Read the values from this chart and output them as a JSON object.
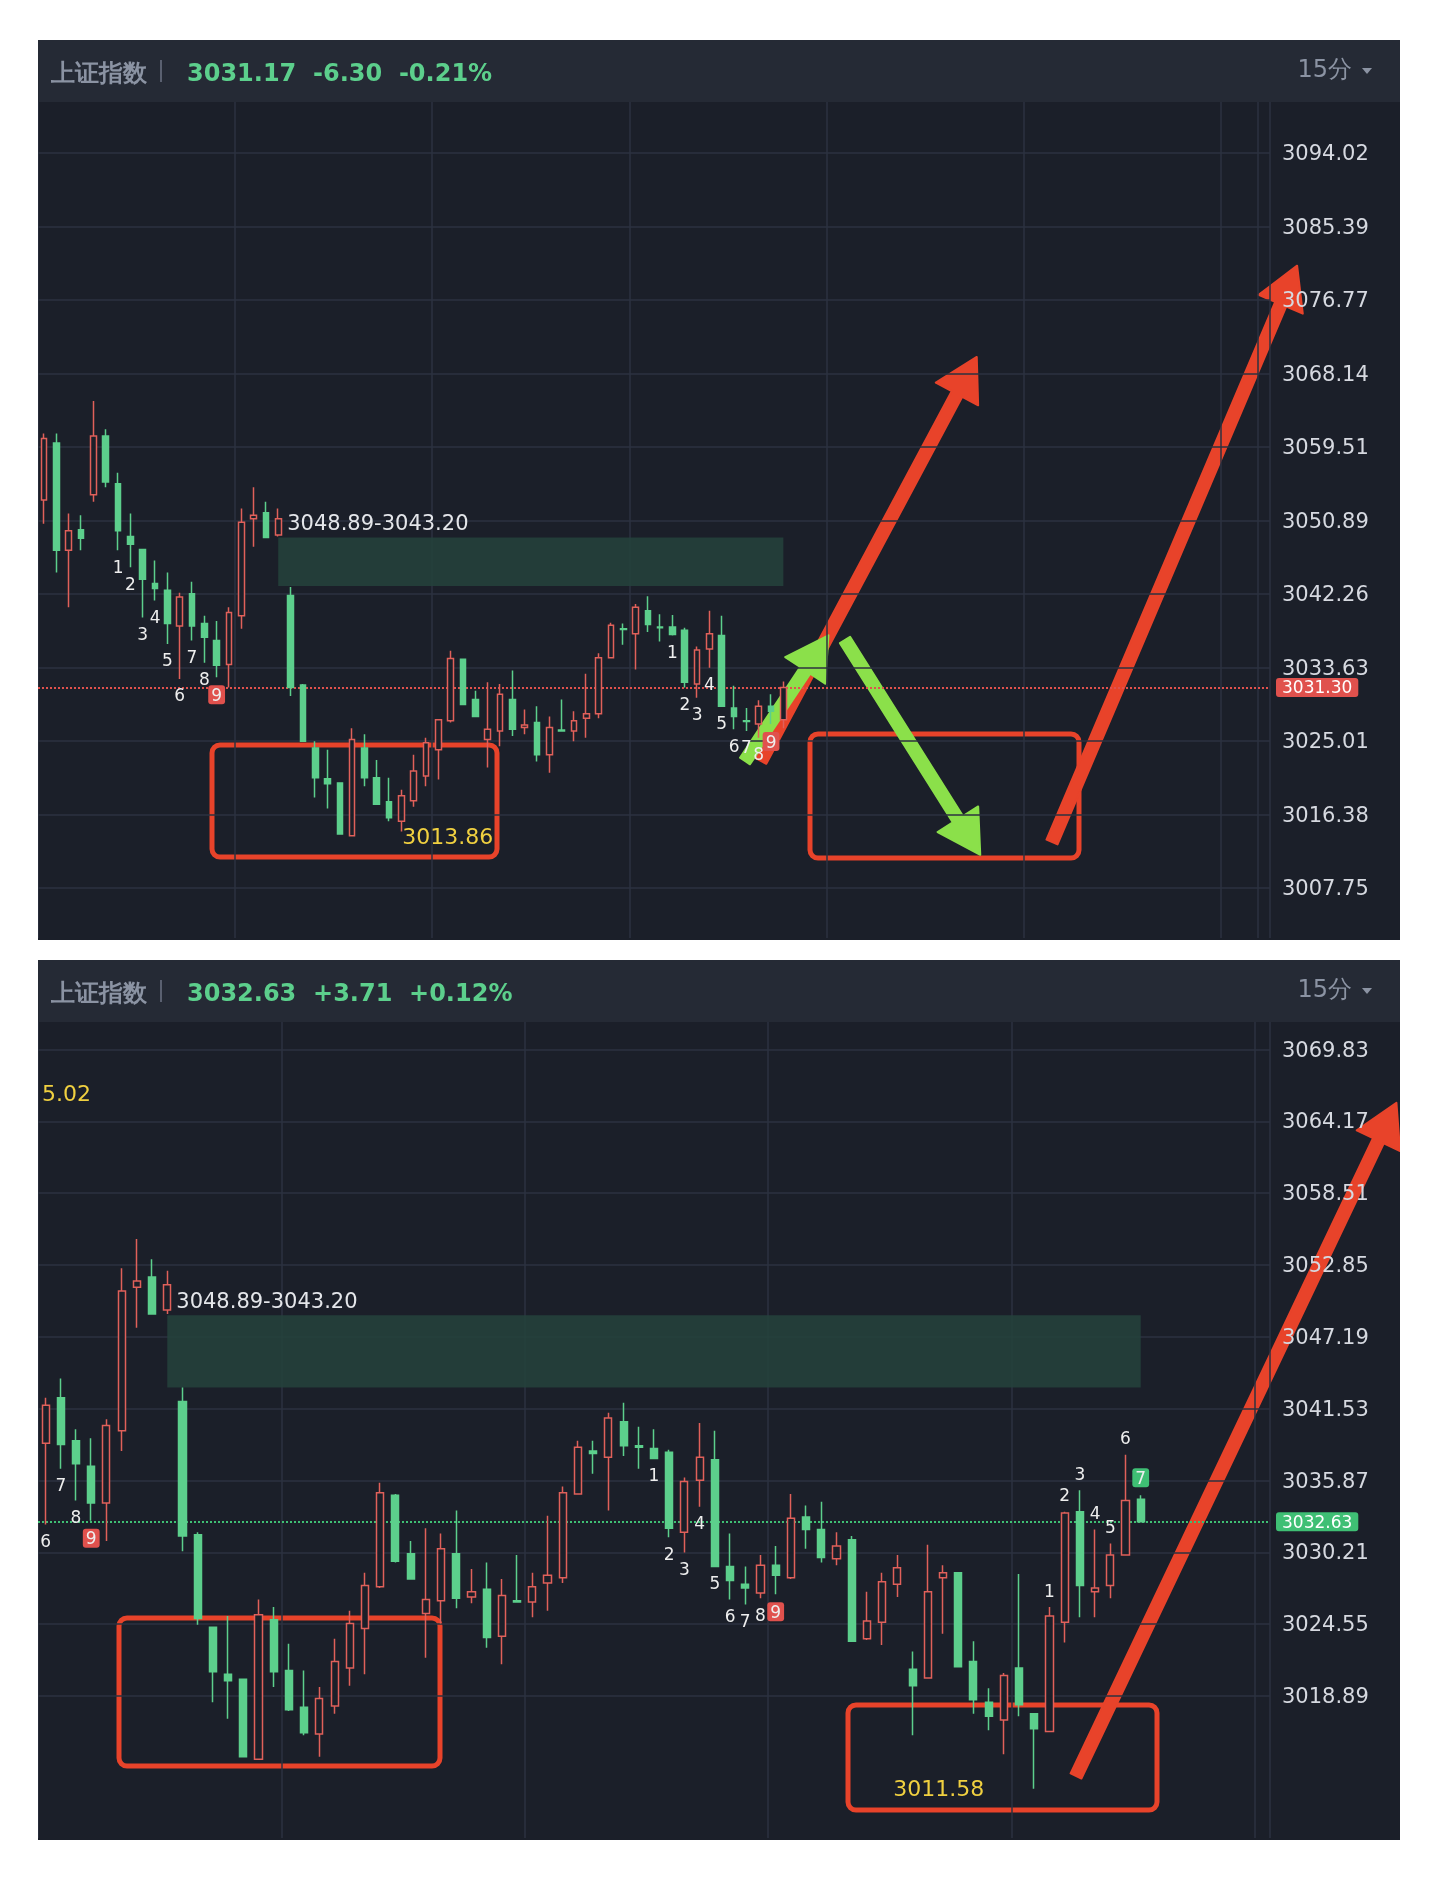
{
  "chart_data": [
    {
      "type": "candlestick",
      "title": "上证指数",
      "subtitle": "3031.17  -6.30  -0.21%",
      "categories": [
        null,
        null,
        null,
        null,
        null,
        null,
        null,
        null,
        null,
        null,
        null,
        null,
        null,
        null,
        null,
        null,
        null,
        null,
        null,
        null,
        null,
        null,
        null,
        null,
        null,
        null,
        null,
        null,
        null,
        null,
        null,
        null,
        null,
        null,
        null,
        null,
        null,
        null,
        null,
        null,
        null,
        null,
        null,
        null,
        null,
        null,
        null,
        null,
        null,
        null,
        null,
        null,
        null,
        null,
        null,
        null,
        null,
        null,
        null,
        null,
        null,
        null,
        null,
        null,
        null,
        null,
        null,
        null,
        null,
        null,
        null,
        null,
        null,
        null,
        null,
        null,
        null,
        null,
        null,
        null,
        null,
        null,
        null,
        null,
        null,
        null,
        null,
        null,
        null,
        null,
        null,
        null,
        null,
        null,
        null,
        null,
        null,
        null,
        null,
        null
      ],
      "ohlc": [
        [
          3053.3,
          3061.1,
          3050.5,
          3060.5
        ],
        [
          3060.0,
          3061.1,
          3044.8,
          3047.4
        ],
        [
          3047.4,
          3051.7,
          3040.7,
          3049.7
        ],
        [
          3049.8,
          3051.5,
          3047.4,
          3048.8
        ],
        [
          3053.9,
          3064.9,
          3053.1,
          3060.8
        ],
        [
          3060.8,
          3061.6,
          3054.8,
          3055.4
        ],
        [
          3055.2,
          3056.5,
          3047.4,
          3049.7
        ],
        [
          3049.0,
          3051.7,
          3045.4,
          3048.1
        ],
        [
          3047.5,
          3047.5,
          3039.5,
          3044.0
        ],
        [
          3043.5,
          3046.2,
          3041.5,
          3042.9
        ],
        [
          3042.7,
          3044.8,
          3036.4,
          3038.8
        ],
        [
          3038.5,
          3042.4,
          3032.3,
          3041.9
        ],
        [
          3042.3,
          3043.7,
          3036.8,
          3038.5
        ],
        [
          3038.8,
          3039.7,
          3034.2,
          3037.2
        ],
        [
          3036.8,
          3039.1,
          3032.5,
          3033.9
        ],
        [
          3034.0,
          3040.7,
          3031.3,
          3040.1
        ],
        [
          3039.7,
          3052.3,
          3038.2,
          3050.7
        ],
        [
          3051.1,
          3054.8,
          3047.8,
          3051.5
        ],
        [
          3051.8,
          3053.1,
          3048.9,
          3048.9
        ],
        [
          3049.2,
          3052.3,
          3049.0,
          3051.1
        ],
        [
          3042.1,
          3043.1,
          3030.3,
          3031.3
        ],
        [
          3031.6,
          3031.7,
          3025.0,
          3025.0
        ],
        [
          3024.2,
          3025.0,
          3018.4,
          3020.7
        ],
        [
          3020.6,
          3024.0,
          3017.1,
          3020.0
        ],
        [
          3020.1,
          3020.1,
          3014.1,
          3014.1
        ],
        [
          3013.9,
          3026.5,
          3013.86,
          3025.2
        ],
        [
          3024.2,
          3025.8,
          3019.7,
          3020.7
        ],
        [
          3020.7,
          3022.8,
          3017.6,
          3017.6
        ],
        [
          3017.9,
          3020.7,
          3015.6,
          3016.0
        ],
        [
          3015.6,
          3019.3,
          3014.4,
          3018.6
        ],
        [
          3018.0,
          3023.4,
          3017.3,
          3021.5
        ],
        [
          3020.9,
          3025.4,
          3019.7,
          3024.8
        ],
        [
          3024.0,
          3027.5,
          3020.5,
          3027.5
        ],
        [
          3027.4,
          3035.6,
          3027.2,
          3034.7
        ],
        [
          3034.6,
          3034.6,
          3029.3,
          3029.3
        ],
        [
          3029.9,
          3030.9,
          3027.9,
          3027.9
        ],
        [
          3025.2,
          3031.9,
          3021.9,
          3026.4
        ],
        [
          3026.2,
          3031.7,
          3024.4,
          3030.5
        ],
        [
          3029.9,
          3033.3,
          3025.6,
          3026.4
        ],
        [
          3026.6,
          3028.7,
          3025.8,
          3026.9
        ],
        [
          3027.2,
          3029.1,
          3022.6,
          3023.4
        ],
        [
          3023.4,
          3027.9,
          3021.3,
          3026.6
        ],
        [
          3026.3,
          3029.9,
          3026.1,
          3026.2
        ],
        [
          3026.2,
          3028.5,
          3025.0,
          3027.4
        ],
        [
          3027.7,
          3032.9,
          3025.4,
          3028.2
        ],
        [
          3028.2,
          3035.3,
          3027.7,
          3034.8
        ],
        [
          3034.8,
          3038.9,
          3034.8,
          3038.6
        ],
        [
          3038.2,
          3038.8,
          3036.3,
          3038.1
        ],
        [
          3037.6,
          3041.1,
          3033.4,
          3040.7
        ],
        [
          3040.3,
          3042.0,
          3037.8,
          3038.7
        ],
        [
          3038.4,
          3039.9,
          3036.7,
          3038.3
        ],
        [
          3038.4,
          3039.8,
          3037.4,
          3037.5
        ],
        [
          3038.0,
          3038.3,
          3031.3,
          3031.9
        ],
        [
          3031.7,
          3036.1,
          3030.1,
          3035.7
        ],
        [
          3035.8,
          3040.3,
          3033.6,
          3037.6
        ],
        [
          3037.4,
          3039.7,
          3029.1,
          3029.1
        ],
        [
          3028.9,
          3031.5,
          3026.4,
          3027.9
        ],
        [
          3027.4,
          3028.9,
          3026.2,
          3027.3
        ],
        [
          3027.0,
          3029.8,
          3025.4,
          3029.1
        ],
        [
          3029.1,
          3030.5,
          3027.0,
          3028.5
        ],
        [
          3027.5,
          3032.0,
          3026.5,
          3031.3
        ],
        null,
        null,
        null,
        null,
        null,
        null,
        null,
        null,
        null,
        null,
        null,
        null,
        null,
        null,
        null,
        null,
        null,
        null,
        null,
        null,
        null,
        null,
        null,
        null,
        null,
        null,
        null,
        null,
        null,
        null,
        null,
        null,
        null,
        null,
        null,
        null,
        null,
        null,
        null
      ],
      "value_labels": [
        null,
        null,
        null,
        null,
        null,
        null,
        "1",
        "2",
        "3",
        "4",
        "5",
        "6",
        "7",
        "8",
        "9",
        null,
        null,
        null,
        null,
        null,
        null,
        null,
        null,
        null,
        null,
        null,
        null,
        null,
        null,
        null,
        null,
        null,
        null,
        null,
        null,
        null,
        null,
        null,
        null,
        null,
        null,
        null,
        null,
        null,
        null,
        null,
        null,
        null,
        null,
        null,
        null,
        "1",
        "2",
        "3",
        "4",
        "5",
        "6",
        "7",
        "8",
        "9",
        null,
        null,
        null,
        null,
        null,
        null,
        null,
        null,
        null,
        null,
        null,
        null,
        null,
        null,
        null,
        null,
        null,
        null,
        null,
        null,
        null,
        null,
        null,
        null,
        null,
        null,
        null,
        null,
        null,
        null,
        null,
        null,
        null,
        null,
        null,
        null,
        null,
        null,
        null,
        null
      ],
      "ylim": [
        3001.9,
        3100.0
      ],
      "yticks": [
        3094.02,
        3085.39,
        3076.77,
        3068.14,
        3059.51,
        3050.89,
        3042.26,
        3033.63,
        3025.01,
        3016.38,
        3007.75
      ],
      "grid": true,
      "tick_labels": "y",
      "ref_lines": [
        {
          "axis": "y",
          "value": 3031.3,
          "label": "3031.30",
          "color": "#e0514d",
          "line_style": "dotted"
        }
      ],
      "bands": [
        {
          "axis": "y",
          "from": 3043.2,
          "to": 3048.89,
          "label": "3048.89-3043.20",
          "color": "#24433c"
        }
      ],
      "annotations": [
        "15分",
        "3013.86"
      ]
    },
    {
      "type": "candlestick",
      "title": "上证指数",
      "subtitle": "3032.63  +3.71  +0.12%",
      "categories": [
        null,
        null,
        null,
        null,
        null,
        null,
        null,
        null,
        null,
        null,
        null,
        null,
        null,
        null,
        null,
        null,
        null,
        null,
        null,
        null,
        null,
        null,
        null,
        null,
        null,
        null,
        null,
        null,
        null,
        null,
        null,
        null,
        null,
        null,
        null,
        null,
        null,
        null,
        null,
        null,
        null,
        null,
        null,
        null,
        null,
        null,
        null,
        null,
        null,
        null,
        null,
        null,
        null,
        null,
        null,
        null,
        null,
        null,
        null,
        null,
        null,
        null,
        null,
        null,
        null,
        null,
        null,
        null,
        null,
        null,
        null,
        null,
        null,
        null,
        null,
        null,
        null,
        null,
        null,
        null,
        null
      ],
      "ohlc": [
        [
          3038.8,
          3042.4,
          3032.4,
          3041.8
        ],
        [
          3042.4,
          3043.9,
          3036.8,
          3038.7
        ],
        [
          3039.0,
          3039.9,
          3034.3,
          3037.2
        ],
        [
          3037.0,
          3039.2,
          3032.7,
          3034.1
        ],
        [
          3034.1,
          3040.7,
          3031.1,
          3040.2
        ],
        [
          3039.8,
          3052.6,
          3038.2,
          3050.8
        ],
        [
          3051.1,
          3054.9,
          3047.9,
          3051.6
        ],
        [
          3051.9,
          3053.3,
          3049.0,
          3049.0
        ],
        [
          3049.3,
          3052.4,
          3049.0,
          3051.3
        ],
        [
          3042.1,
          3043.2,
          3030.3,
          3031.5
        ],
        [
          3031.6,
          3031.8,
          3024.5,
          3025.0
        ],
        [
          3024.3,
          3024.3,
          3018.4,
          3020.8
        ],
        [
          3020.6,
          3025.2,
          3017.1,
          3020.1
        ],
        [
          3020.2,
          3020.2,
          3014.1,
          3014.1
        ],
        [
          3013.9,
          3026.5,
          3013.9,
          3025.3
        ],
        [
          3024.9,
          3025.9,
          3019.6,
          3020.8
        ],
        [
          3020.9,
          3023.0,
          3017.7,
          3017.8
        ],
        [
          3018.0,
          3020.9,
          3015.8,
          3016.0
        ],
        [
          3015.9,
          3019.6,
          3014.1,
          3018.7
        ],
        [
          3018.1,
          3023.4,
          3017.5,
          3021.6
        ],
        [
          3021.1,
          3025.6,
          3019.7,
          3024.6
        ],
        [
          3024.2,
          3028.6,
          3020.6,
          3027.6
        ],
        [
          3027.5,
          3035.7,
          3027.4,
          3034.9
        ],
        [
          3034.7,
          3034.8,
          3029.4,
          3029.5
        ],
        [
          3030.1,
          3031.1,
          3028.1,
          3028.1
        ],
        [
          3025.4,
          3032.1,
          3021.9,
          3026.5
        ],
        [
          3026.4,
          3031.7,
          3024.6,
          3030.5
        ],
        [
          3030.1,
          3033.5,
          3025.8,
          3026.6
        ],
        [
          3026.7,
          3028.9,
          3026.2,
          3027.1
        ],
        [
          3027.3,
          3029.4,
          3022.7,
          3023.5
        ],
        [
          3023.6,
          3028.1,
          3021.4,
          3026.8
        ],
        [
          3026.4,
          3030.0,
          3026.3,
          3026.3
        ],
        [
          3026.3,
          3028.6,
          3025.1,
          3027.5
        ],
        [
          3027.8,
          3033.1,
          3025.6,
          3028.4
        ],
        [
          3028.2,
          3035.4,
          3027.8,
          3034.9
        ],
        [
          3034.8,
          3039.0,
          3034.8,
          3038.5
        ],
        [
          3038.2,
          3039.0,
          3036.4,
          3038.0
        ],
        [
          3037.7,
          3041.2,
          3033.5,
          3040.8
        ],
        [
          3040.5,
          3042.0,
          3037.8,
          3038.6
        ],
        [
          3038.6,
          3040.1,
          3036.8,
          3038.5
        ],
        [
          3038.4,
          3039.9,
          3037.6,
          3037.6
        ],
        [
          3038.1,
          3038.3,
          3031.4,
          3032.1
        ],
        [
          3031.8,
          3036.1,
          3030.2,
          3035.8
        ],
        [
          3035.9,
          3040.4,
          3033.8,
          3037.7
        ],
        [
          3037.5,
          3039.8,
          3029.1,
          3029.1
        ],
        [
          3029.1,
          3031.7,
          3026.5,
          3028.0
        ],
        [
          3027.7,
          3029.1,
          3026.1,
          3027.4
        ],
        [
          3027.0,
          3030.0,
          3026.6,
          3029.2
        ],
        [
          3029.2,
          3030.7,
          3026.9,
          3028.4
        ],
        [
          3028.2,
          3034.8,
          3028.1,
          3032.9
        ],
        [
          3033.0,
          3033.9,
          3030.5,
          3032.0
        ],
        [
          3032.0,
          3034.2,
          3029.4,
          3029.8
        ],
        [
          3029.7,
          3031.8,
          3029.2,
          3030.7
        ],
        [
          3031.2,
          3031.5,
          3023.2,
          3023.2
        ],
        [
          3023.4,
          3027.1,
          3023.3,
          3024.8
        ],
        [
          3024.7,
          3028.6,
          3022.9,
          3027.9
        ],
        [
          3027.7,
          3030.0,
          3026.7,
          3029.0
        ],
        [
          3021.0,
          3022.4,
          3015.8,
          3019.7
        ],
        [
          3020.3,
          3030.8,
          3020.3,
          3027.1
        ],
        [
          3028.2,
          3029.2,
          3023.8,
          3028.6
        ],
        [
          3028.6,
          3028.6,
          3021.2,
          3021.2
        ],
        [
          3021.6,
          3023.2,
          3017.5,
          3018.6
        ],
        [
          3018.4,
          3019.5,
          3016.2,
          3017.3
        ],
        [
          3017.0,
          3020.7,
          3014.3,
          3020.5
        ],
        [
          3021.1,
          3028.5,
          3017.3,
          3018.2
        ],
        [
          3017.5,
          3017.5,
          3011.58,
          3016.3
        ],
        [
          3016.1,
          3025.9,
          3016.1,
          3025.2
        ],
        [
          3024.7,
          3033.4,
          3023.1,
          3033.3
        ],
        [
          3033.4,
          3035.1,
          3025.1,
          3027.6
        ],
        [
          3027.1,
          3032.0,
          3025.1,
          3027.4
        ],
        [
          3027.6,
          3030.9,
          3026.6,
          3030.0
        ],
        [
          3030.0,
          3037.9,
          3030.0,
          3034.3
        ],
        [
          3034.4,
          3034.7,
          3032.6,
          3032.63
        ],
        null,
        null,
        null,
        null,
        null,
        null,
        null,
        null
      ],
      "value_labels": [
        "6",
        "7",
        "8",
        "9",
        null,
        null,
        null,
        null,
        null,
        null,
        null,
        null,
        null,
        null,
        null,
        null,
        null,
        null,
        null,
        null,
        null,
        null,
        null,
        null,
        null,
        null,
        null,
        null,
        null,
        null,
        null,
        null,
        null,
        null,
        null,
        null,
        null,
        null,
        null,
        null,
        "1",
        "2",
        "3",
        "4",
        "5",
        "6",
        "7",
        "8",
        "9",
        null,
        null,
        null,
        null,
        null,
        null,
        null,
        null,
        null,
        null,
        null,
        null,
        null,
        null,
        null,
        null,
        null,
        "1",
        "2",
        "3",
        "4",
        "5",
        "6",
        "7",
        null,
        null,
        null,
        null,
        null,
        null,
        null,
        null
      ],
      "ylim": [
        3007.7,
        3072.0
      ],
      "yticks": [
        3069.83,
        3064.17,
        3058.51,
        3052.85,
        3047.19,
        3041.53,
        3035.87,
        3030.21,
        3024.55,
        3018.89
      ],
      "grid": true,
      "tick_labels": "y",
      "ref_lines": [
        {
          "axis": "y",
          "value": 3032.63,
          "label": "3032.63",
          "color": "#3fbf74",
          "line_style": "dotted"
        }
      ],
      "bands": [
        {
          "axis": "y",
          "from": 3043.2,
          "to": 3048.89,
          "label": "3048.89-3043.20",
          "color": "#24433c"
        }
      ],
      "annotations": [
        "15分",
        "5.02",
        "3011.58"
      ]
    }
  ]
}
